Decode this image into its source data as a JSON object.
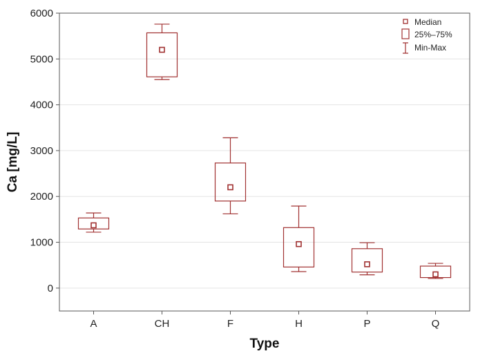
{
  "chart_data": {
    "type": "boxplot",
    "xlabel": "Type",
    "ylabel": "Ca [mg/L]",
    "ylim": [
      -500,
      6000
    ],
    "yticks": [
      0,
      1000,
      2000,
      3000,
      4000,
      5000,
      6000
    ],
    "grid": true,
    "legend_position": "top-right",
    "legend": [
      "Median",
      "25%–75%",
      "Min-Max"
    ],
    "color": "#a03030",
    "categories": [
      "A",
      "CH",
      "F",
      "H",
      "P",
      "Q"
    ],
    "boxes": [
      {
        "category": "A",
        "min": 1220,
        "q1": 1290,
        "median": 1370,
        "q3": 1530,
        "max": 1640
      },
      {
        "category": "CH",
        "min": 4550,
        "q1": 4610,
        "median": 5200,
        "q3": 5570,
        "max": 5760
      },
      {
        "category": "F",
        "min": 1620,
        "q1": 1900,
        "median": 2200,
        "q3": 2730,
        "max": 3280
      },
      {
        "category": "H",
        "min": 360,
        "q1": 460,
        "median": 960,
        "q3": 1320,
        "max": 1790
      },
      {
        "category": "P",
        "min": 290,
        "q1": 350,
        "median": 520,
        "q3": 860,
        "max": 990
      },
      {
        "category": "Q",
        "min": 210,
        "q1": 230,
        "median": 300,
        "q3": 480,
        "max": 540
      }
    ]
  }
}
